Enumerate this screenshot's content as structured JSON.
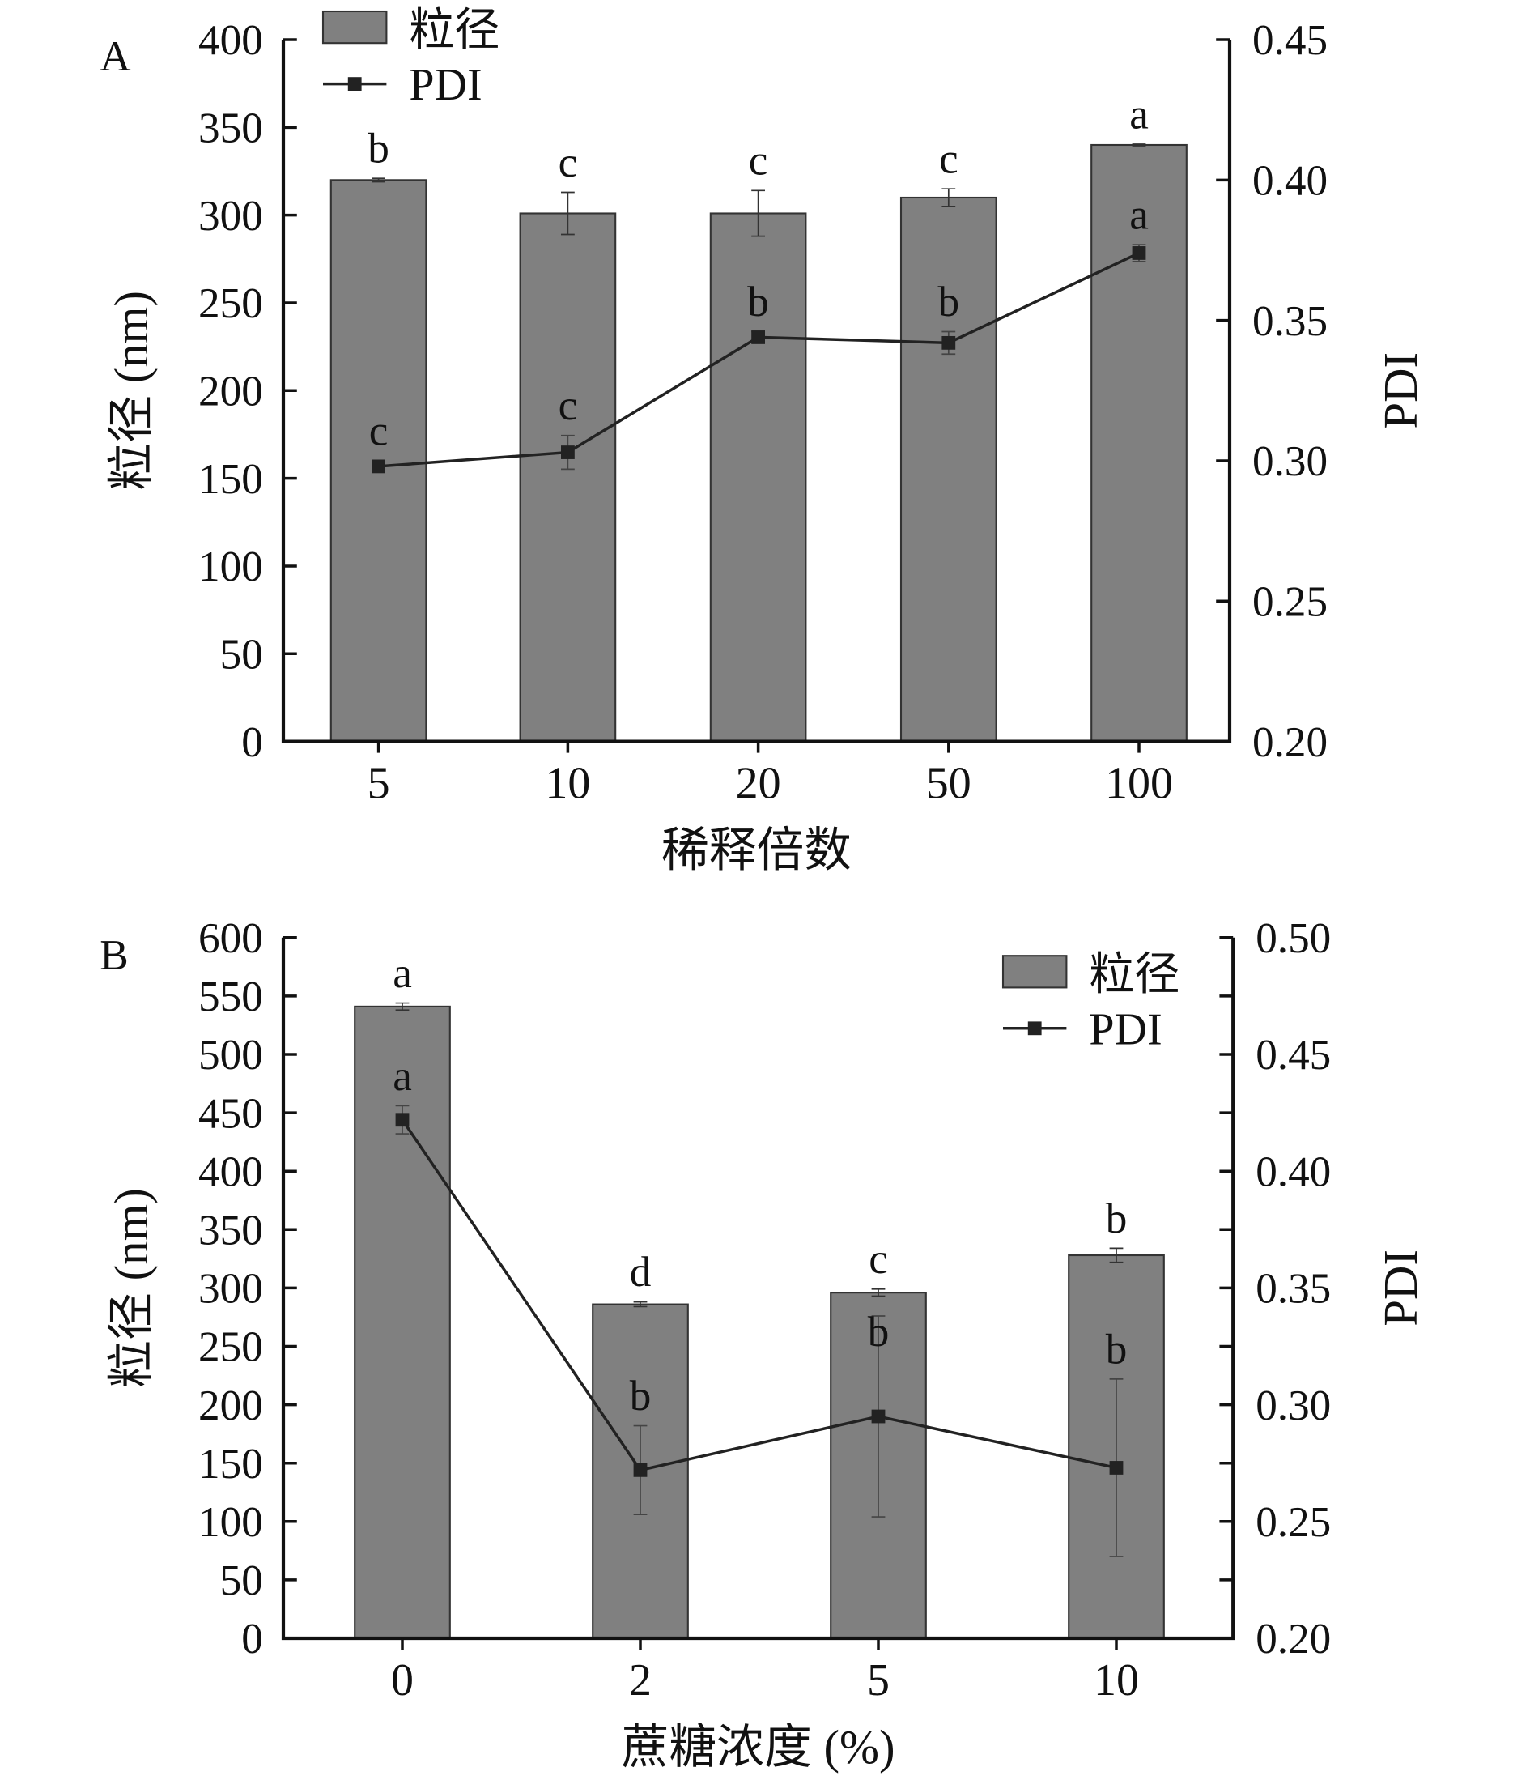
{
  "chart_data": [
    {
      "type": "bar",
      "panel": "A",
      "categories": [
        "5",
        "10",
        "20",
        "50",
        "100"
      ],
      "xlabel": "稀释倍数",
      "ylabel": "粒径 (nm)",
      "y2label": "PDI",
      "ylim": [
        0,
        400
      ],
      "yticks": [
        0,
        50,
        100,
        150,
        200,
        250,
        300,
        350,
        400
      ],
      "y2lim": [
        0.2,
        0.45
      ],
      "y2ticks": [
        "0.20",
        "0.25",
        "0.30",
        "0.35",
        "0.40",
        "0.45"
      ],
      "legend": {
        "position": "top-left",
        "bar": "粒径",
        "line": "PDI"
      },
      "series": [
        {
          "name": "粒径",
          "type": "bar",
          "values": [
            320,
            301,
            301,
            310,
            340
          ],
          "errors": [
            1,
            12,
            13,
            5,
            0.5
          ],
          "letters": [
            "b",
            "c",
            "c",
            "c",
            "a"
          ]
        },
        {
          "name": "PDI",
          "type": "line",
          "axis": "right",
          "values": [
            0.298,
            0.303,
            0.344,
            0.342,
            0.374
          ],
          "errors": [
            0.002,
            0.006,
            0.002,
            0.004,
            0.003
          ],
          "letters": [
            "c",
            "c",
            "b",
            "b",
            "a"
          ]
        }
      ]
    },
    {
      "type": "bar",
      "panel": "B",
      "categories": [
        "0",
        "2",
        "5",
        "10"
      ],
      "xlabel": "蔗糖浓度 (%)",
      "ylabel": "粒径 (nm)",
      "y2label": "PDI",
      "ylim": [
        0,
        600
      ],
      "yticks": [
        0,
        50,
        100,
        150,
        200,
        250,
        300,
        350,
        400,
        450,
        500,
        550,
        600
      ],
      "y2lim": [
        0.2,
        0.5
      ],
      "y2ticks": [
        "0.20",
        "0.25",
        "0.30",
        "0.35",
        "0.40",
        "0.45",
        "0.50"
      ],
      "legend": {
        "position": "top-right",
        "bar": "粒径",
        "line": "PDI"
      },
      "series": [
        {
          "name": "粒径",
          "type": "bar",
          "values": [
            541,
            286,
            296,
            328
          ],
          "errors": [
            3,
            2,
            3,
            6
          ],
          "letters": [
            "a",
            "d",
            "c",
            "b"
          ]
        },
        {
          "name": "PDI",
          "type": "line",
          "axis": "right",
          "values": [
            0.422,
            0.272,
            0.295,
            0.273
          ],
          "errors": [
            0.006,
            0.019,
            0.043,
            0.038
          ],
          "letters": [
            "a",
            "b",
            "b",
            "b"
          ]
        }
      ]
    }
  ],
  "colors": {
    "bar": "#808080",
    "line": "#222222",
    "axis": "#111111"
  }
}
